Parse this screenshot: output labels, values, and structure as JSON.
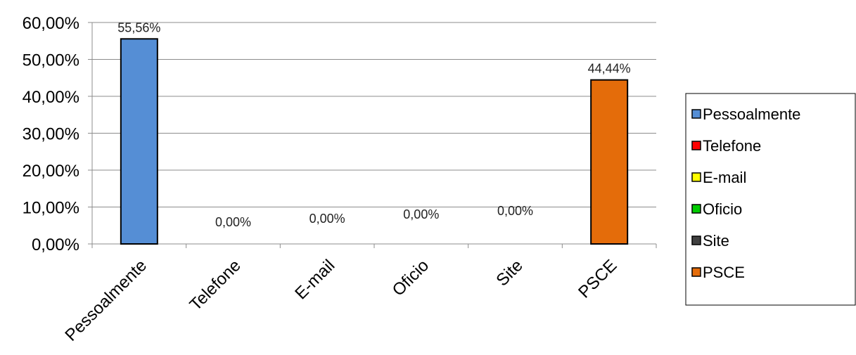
{
  "chart_data": {
    "type": "bar",
    "categories": [
      "Pessoalmente",
      "Telefone",
      "E-mail",
      "Oficio",
      "Site",
      "PSCE"
    ],
    "values": [
      55.56,
      0,
      0,
      0,
      0,
      44.44
    ],
    "data_labels": [
      "55,56%",
      "0,00%",
      "0,00%",
      "0,00%",
      "0,00%",
      "44,44%"
    ],
    "yticks": [
      "0,00%",
      "10,00%",
      "20,00%",
      "30,00%",
      "40,00%",
      "50,00%",
      "60,00%"
    ],
    "ylim": [
      0,
      60
    ],
    "grid": true,
    "legend_position": "right",
    "legend": [
      {
        "label": "Pessoalmente",
        "color": "#558ED5"
      },
      {
        "label": "Telefone",
        "color": "#FF0000"
      },
      {
        "label": "E-mail",
        "color": "#FFFF00"
      },
      {
        "label": "Oficio",
        "color": "#00CC00"
      },
      {
        "label": "Site",
        "color": "#404040"
      },
      {
        "label": "PSCE",
        "color": "#E46C0A"
      }
    ],
    "title": "",
    "xlabel": "",
    "ylabel": ""
  }
}
